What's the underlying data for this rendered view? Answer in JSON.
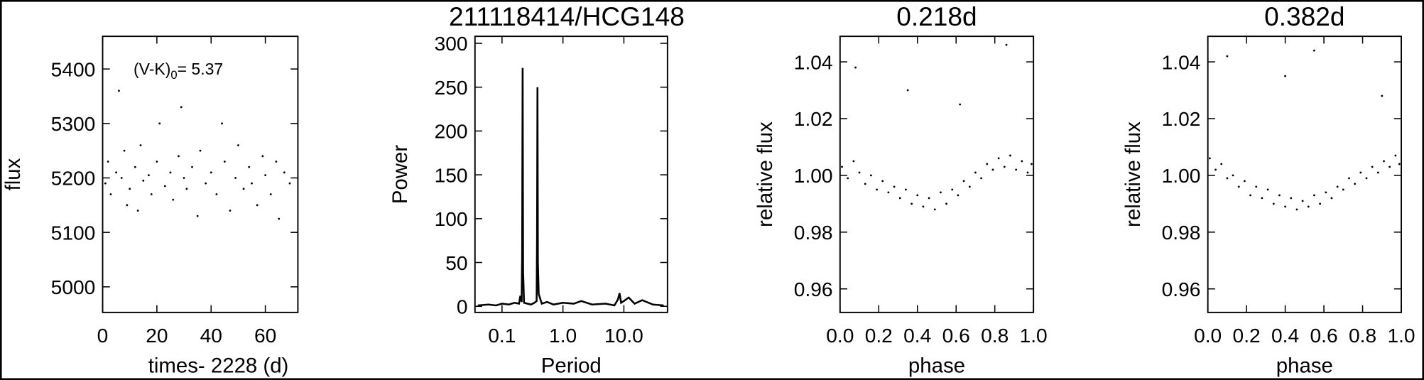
{
  "chart_data": [
    {
      "type": "scatter",
      "xlabel": "times- 2228 (d)",
      "ylabel": "flux",
      "annotation": {
        "text": "(V-K)",
        "subscript": "0",
        "value": "= 5.37"
      },
      "xlim": [
        0,
        72
      ],
      "ylim": [
        4953,
        5460
      ],
      "xticks": [
        0,
        20,
        40,
        60
      ],
      "yticks": [
        5000,
        5100,
        5200,
        5300,
        5400
      ],
      "color": "#000000",
      "x": [
        1,
        2,
        3,
        5,
        6,
        7,
        8,
        9,
        10,
        12,
        13,
        14,
        15,
        17,
        18,
        20,
        21,
        23,
        25,
        26,
        28,
        29,
        30,
        31,
        33,
        35,
        36,
        38,
        40,
        42,
        44,
        45,
        47,
        49,
        50,
        52,
        54,
        55,
        57,
        59,
        60,
        62,
        64,
        65,
        67,
        69
      ],
      "values": [
        5190,
        5230,
        5170,
        5210,
        5360,
        5200,
        5250,
        5150,
        5180,
        5220,
        5140,
        5260,
        5195,
        5205,
        5170,
        5230,
        5300,
        5185,
        5210,
        5160,
        5240,
        5330,
        5200,
        5180,
        5220,
        5130,
        5250,
        5190,
        5210,
        5170,
        5300,
        5230,
        5140,
        5200,
        5260,
        5180,
        5220,
        5190,
        5150,
        5240,
        5205,
        5170,
        5230,
        5125,
        5210,
        5190
      ]
    },
    {
      "type": "line",
      "title": "211118414/HCG148",
      "xlabel": "Period",
      "ylabel": "Power",
      "xscale": "log",
      "xlim": [
        0.036,
        52
      ],
      "ylim": [
        -7,
        308
      ],
      "xticks": [
        {
          "value": 0.1,
          "label": "0.1"
        },
        {
          "value": 1,
          "label": "1.0"
        },
        {
          "value": 10,
          "label": "10.0"
        }
      ],
      "yticks": [
        0,
        50,
        100,
        150,
        200,
        250,
        300
      ],
      "color": "#000000",
      "x": [
        0.04,
        0.06,
        0.08,
        0.1,
        0.13,
        0.16,
        0.19,
        0.2,
        0.21,
        0.214,
        0.218,
        0.222,
        0.23,
        0.26,
        0.3,
        0.34,
        0.37,
        0.376,
        0.382,
        0.388,
        0.4,
        0.45,
        0.55,
        0.7,
        1,
        1.5,
        2,
        3,
        5,
        7,
        8,
        8.5,
        9,
        10,
        12,
        15,
        20,
        30,
        45
      ],
      "values": [
        1,
        2,
        1,
        3,
        2,
        4,
        3,
        12,
        5,
        60,
        272,
        40,
        4,
        3,
        2,
        4,
        6,
        80,
        250,
        50,
        14,
        3,
        5,
        2,
        4,
        3,
        6,
        2,
        3,
        1,
        8,
        15,
        4,
        6,
        10,
        3,
        7,
        2,
        1
      ]
    },
    {
      "type": "scatter",
      "title": "0.218d",
      "xlabel": "phase",
      "ylabel": "relative flux",
      "xlim": [
        0,
        1
      ],
      "ylim": [
        0.9517,
        1.049
      ],
      "xticks": [
        {
          "value": 0,
          "label": "0.0"
        },
        0.2,
        0.4,
        0.6,
        0.8,
        {
          "value": 1,
          "label": "1.0"
        }
      ],
      "yticks": [
        0.96,
        0.98,
        {
          "value": 1,
          "label": "1.00"
        },
        1.02,
        1.04
      ],
      "color": "#000000",
      "x": [
        0.01,
        0.04,
        0.07,
        0.1,
        0.13,
        0.16,
        0.19,
        0.22,
        0.25,
        0.28,
        0.31,
        0.34,
        0.37,
        0.4,
        0.43,
        0.46,
        0.49,
        0.52,
        0.55,
        0.58,
        0.61,
        0.64,
        0.67,
        0.7,
        0.73,
        0.76,
        0.79,
        0.82,
        0.85,
        0.88,
        0.91,
        0.94,
        0.97,
        0.99,
        0.08,
        0.35,
        0.62,
        0.86
      ],
      "values": [
        1.003,
        0.999,
        1.005,
        1.001,
        0.997,
        1.0,
        0.995,
        0.998,
        0.994,
        0.996,
        0.992,
        0.995,
        0.99,
        0.993,
        0.989,
        0.992,
        0.988,
        0.994,
        0.99,
        0.995,
        0.993,
        0.998,
        0.996,
        1.001,
        0.999,
        1.004,
        1.002,
        1.006,
        1.003,
        1.007,
        1.002,
        1.005,
        1.001,
        1.004,
        1.038,
        1.03,
        1.025,
        1.046
      ]
    },
    {
      "type": "scatter",
      "title": "0.382d",
      "xlabel": "phase",
      "ylabel": "relative flux",
      "xlim": [
        0,
        1
      ],
      "ylim": [
        0.9517,
        1.049
      ],
      "xticks": [
        {
          "value": 0,
          "label": "0.0"
        },
        0.2,
        0.4,
        0.6,
        0.8,
        {
          "value": 1,
          "label": "1.0"
        }
      ],
      "yticks": [
        0.96,
        0.98,
        {
          "value": 1,
          "label": "1.00"
        },
        1.02,
        1.04
      ],
      "color": "#000000",
      "x": [
        0.01,
        0.04,
        0.07,
        0.1,
        0.13,
        0.16,
        0.19,
        0.22,
        0.25,
        0.28,
        0.31,
        0.34,
        0.37,
        0.4,
        0.43,
        0.46,
        0.49,
        0.52,
        0.55,
        0.58,
        0.61,
        0.64,
        0.67,
        0.7,
        0.73,
        0.76,
        0.79,
        0.82,
        0.85,
        0.88,
        0.91,
        0.94,
        0.97,
        0.99,
        0.1,
        0.4,
        0.55,
        0.9
      ],
      "values": [
        1.006,
        1.002,
        1.004,
        0.999,
        1.0,
        0.996,
        0.998,
        0.993,
        0.996,
        0.992,
        0.995,
        0.99,
        0.993,
        0.989,
        0.992,
        0.988,
        0.991,
        0.989,
        0.993,
        0.99,
        0.994,
        0.992,
        0.996,
        0.995,
        0.999,
        0.997,
        1.001,
        0.999,
        1.003,
        1.001,
        1.005,
        1.003,
        1.007,
        1.004,
        1.042,
        1.035,
        1.044,
        1.028
      ]
    }
  ]
}
